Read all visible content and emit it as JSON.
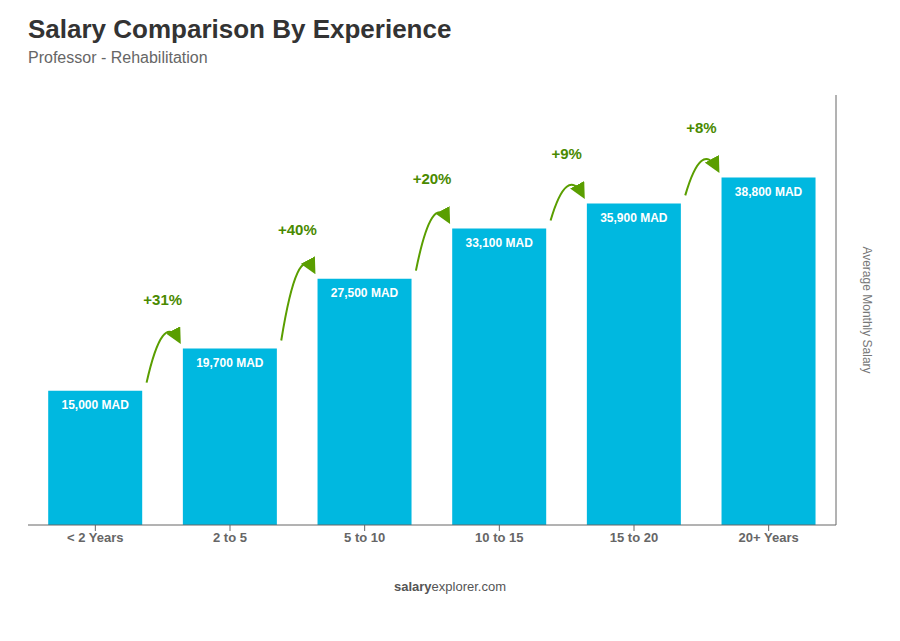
{
  "chart_data": {
    "type": "bar",
    "title": "Salary Comparison By Experience",
    "subtitle": "Professor - Rehabilitation",
    "categories": [
      "< 2 Years",
      "2 to 5",
      "5 to 10",
      "10 to 15",
      "15 to 20",
      "20+ Years"
    ],
    "values": [
      15000,
      19700,
      27500,
      33100,
      35900,
      38800
    ],
    "value_labels": [
      "15,000 MAD",
      "19,700 MAD",
      "27,500 MAD",
      "33,100 MAD",
      "35,900 MAD",
      "38,800 MAD"
    ],
    "data_labels": true,
    "color": "#00b8e0",
    "ylabel": "Average Monthly Salary",
    "ylim": [
      0,
      48000
    ],
    "tick_labels": "x",
    "grid": false,
    "annotations": [
      {
        "from": "< 2 Years",
        "to": "2 to 5",
        "text": "+31%"
      },
      {
        "from": "2 to 5",
        "to": "5 to 10",
        "text": "+40%"
      },
      {
        "from": "5 to 10",
        "to": "10 to 15",
        "text": "+20%"
      },
      {
        "from": "10 to 15",
        "to": "15 to 20",
        "text": "+9%"
      },
      {
        "from": "15 to 20",
        "to": "20+ Years",
        "text": "+8%"
      }
    ],
    "footer": [
      "salary",
      "explorer.com"
    ]
  }
}
